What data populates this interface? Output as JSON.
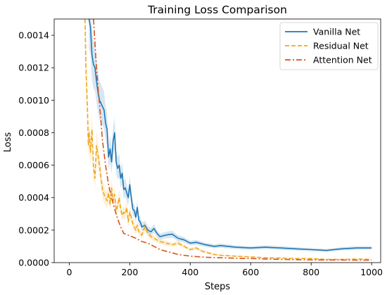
{
  "chart_data": {
    "type": "line",
    "title": "Training Loss Comparison",
    "xlabel": "Steps",
    "ylabel": "Loss",
    "xlim": [
      -50,
      1030
    ],
    "ylim": [
      0,
      0.0015
    ],
    "xticks": [
      0,
      200,
      400,
      600,
      800,
      1000
    ],
    "xtick_labels": [
      "0",
      "200",
      "400",
      "600",
      "800",
      "1000"
    ],
    "yticks": [
      0,
      0.0002,
      0.0004,
      0.0006,
      0.0008,
      0.001,
      0.0012,
      0.0014
    ],
    "ytick_labels": [
      "0.0000",
      "0.0002",
      "0.0004",
      "0.0006",
      "0.0008",
      "0.0010",
      "0.0012",
      "0.0014"
    ],
    "grid": false,
    "legend_position": "top-right",
    "series": [
      {
        "name": "Vanilla Net",
        "style": "solid",
        "color": "#1f77b4",
        "shaded_band": true,
        "x": [
          65,
          70,
          75,
          80,
          85,
          90,
          95,
          100,
          105,
          110,
          115,
          120,
          125,
          130,
          135,
          140,
          145,
          150,
          155,
          160,
          165,
          170,
          175,
          180,
          185,
          190,
          195,
          200,
          205,
          210,
          215,
          220,
          225,
          230,
          235,
          240,
          250,
          260,
          270,
          280,
          290,
          300,
          320,
          340,
          360,
          380,
          400,
          420,
          450,
          480,
          500,
          550,
          600,
          650,
          700,
          750,
          800,
          850,
          900,
          950,
          1000
        ],
        "y": [
          0.0015,
          0.00145,
          0.00128,
          0.00122,
          0.0012,
          0.00112,
          0.00105,
          0.001,
          0.00098,
          0.00096,
          0.00094,
          0.00086,
          0.00082,
          0.00065,
          0.0007,
          0.00062,
          0.00075,
          0.0008,
          0.00062,
          0.00058,
          0.0006,
          0.00052,
          0.00055,
          0.00045,
          0.00046,
          0.00043,
          0.0004,
          0.00048,
          0.0004,
          0.00033,
          0.00032,
          0.00028,
          0.00034,
          0.00026,
          0.00025,
          0.00022,
          0.00023,
          0.0002,
          0.00019,
          0.00021,
          0.00018,
          0.00016,
          0.00017,
          0.000175,
          0.00015,
          0.00014,
          0.00012,
          0.000125,
          0.00011,
          0.0001,
          0.000105,
          9.5e-05,
          9e-05,
          9.5e-05,
          9e-05,
          8.5e-05,
          8e-05,
          7.5e-05,
          8.5e-05,
          9e-05,
          9e-05
        ]
      },
      {
        "name": "Residual Net",
        "style": "dashed",
        "color": "#f0a81c",
        "shaded_band": true,
        "x": [
          52,
          55,
          58,
          60,
          63,
          66,
          70,
          75,
          80,
          85,
          90,
          95,
          100,
          105,
          110,
          115,
          120,
          125,
          130,
          135,
          140,
          145,
          150,
          155,
          160,
          165,
          170,
          175,
          180,
          185,
          190,
          195,
          200,
          205,
          210,
          215,
          220,
          225,
          230,
          240,
          250,
          260,
          270,
          280,
          290,
          300,
          320,
          340,
          360,
          380,
          400,
          420,
          440,
          460,
          480,
          500,
          550,
          600,
          650,
          700,
          750,
          800,
          850,
          900,
          950,
          1000
        ],
        "y": [
          0.0015,
          0.0012,
          0.00105,
          0.00095,
          0.00072,
          0.0008,
          0.00068,
          0.00082,
          0.00058,
          0.00052,
          0.00072,
          0.00066,
          0.0006,
          0.00052,
          0.00045,
          0.00042,
          0.0004,
          0.00038,
          0.00043,
          0.00036,
          0.00046,
          0.00038,
          0.00042,
          0.00032,
          0.00035,
          0.0004,
          0.00033,
          0.00029,
          0.00031,
          0.0003,
          0.00034,
          0.00025,
          0.00031,
          0.00028,
          0.00024,
          0.00022,
          0.0002,
          0.00023,
          0.00019,
          0.00017,
          0.00022,
          0.00018,
          0.00016,
          0.00015,
          0.00014,
          0.00013,
          0.00012,
          0.00011,
          0.00012,
          0.0001,
          8e-05,
          9e-05,
          7e-05,
          6e-05,
          5e-05,
          4.5e-05,
          4e-05,
          3.5e-05,
          3e-05,
          2.8e-05,
          2.5e-05,
          2.5e-05,
          2e-05,
          2e-05,
          2.2e-05,
          2e-05
        ]
      },
      {
        "name": "Attention Net",
        "style": "dashdot",
        "color": "#d95319",
        "shaded_band": false,
        "x": [
          80,
          85,
          90,
          95,
          100,
          110,
          120,
          130,
          140,
          150,
          160,
          170,
          180,
          200,
          220,
          240,
          260,
          280,
          300,
          330,
          360,
          400,
          450,
          500,
          550,
          600,
          650,
          700,
          750,
          800,
          850,
          900,
          950,
          1000
        ],
        "y": [
          0.0015,
          0.00135,
          0.0012,
          0.00108,
          0.00098,
          0.00075,
          0.0006,
          0.00048,
          0.0004,
          0.00033,
          0.00027,
          0.00022,
          0.00018,
          0.000165,
          0.00015,
          0.00013,
          0.00012,
          0.0001,
          8e-05,
          6.5e-05,
          5e-05,
          4e-05,
          3.3e-05,
          3e-05,
          2.7e-05,
          2.5e-05,
          2.2e-05,
          2e-05,
          1.8e-05,
          1.7e-05,
          1.6e-05,
          1.6e-05,
          1.5e-05,
          1.5e-05
        ]
      }
    ]
  }
}
